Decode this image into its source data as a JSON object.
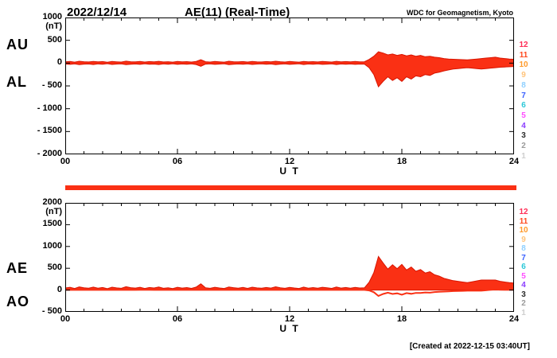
{
  "header": {
    "date": "2022/12/14",
    "title": "AE(11) (Real-Time)",
    "source": "WDC for Geomagnetism, Kyoto"
  },
  "footer": {
    "created": "[Created at 2022-12-15 03:40UT]"
  },
  "colors": {
    "background": "#ffffff",
    "frame": "#000000",
    "text": "#000000",
    "trace_fill": "#fa3014",
    "trace_stroke": "#d81400"
  },
  "station_bar": {
    "count": 11,
    "color": "#fa3014"
  },
  "station_legend": {
    "entries": [
      {
        "label": "12",
        "color": "#ff2d55"
      },
      {
        "label": "11",
        "color": "#ff4a1f"
      },
      {
        "label": "10",
        "color": "#ff9a2a"
      },
      {
        "label": "9",
        "color": "#ffc37a"
      },
      {
        "label": "8",
        "color": "#8fd0ff"
      },
      {
        "label": "7",
        "color": "#3a60ff"
      },
      {
        "label": "6",
        "color": "#2cc8d8"
      },
      {
        "label": "5",
        "color": "#ff4dff"
      },
      {
        "label": "4",
        "color": "#8a3cff"
      },
      {
        "label": "3",
        "color": "#2b2b2b"
      },
      {
        "label": "2",
        "color": "#9a9a9a"
      },
      {
        "label": "1",
        "color": "#cfcfcf"
      }
    ]
  },
  "chart_data": [
    {
      "type": "area",
      "name": "AU-AL-panel",
      "left_labels": [
        "AU",
        "AL"
      ],
      "xlabel": "U T",
      "ylabel_unit": "(nT)",
      "ylim": [
        -2000,
        1000
      ],
      "xlim": [
        0,
        24
      ],
      "fill_mode": "between",
      "x_start": 0,
      "x_step_hours": 0.25,
      "xticks": [
        {
          "h": 0,
          "label": "00"
        },
        {
          "h": 6,
          "label": "06"
        },
        {
          "h": 12,
          "label": "12"
        },
        {
          "h": 18,
          "label": "18"
        },
        {
          "h": 24,
          "label": "24"
        }
      ],
      "yticks": [
        {
          "v": 1000,
          "label": "1000"
        },
        {
          "v": 500,
          "label": "500"
        },
        {
          "v": 0,
          "label": "0"
        },
        {
          "v": -500,
          "label": "- 500"
        },
        {
          "v": -1000,
          "label": "- 1000"
        },
        {
          "v": -1500,
          "label": "- 1500"
        },
        {
          "v": -2000,
          "label": "- 2000"
        }
      ],
      "series": [
        {
          "name": "AU",
          "values": [
            28,
            35,
            22,
            40,
            30,
            25,
            38,
            27,
            33,
            20,
            36,
            29,
            24,
            42,
            31,
            26,
            37,
            23,
            34,
            28,
            39,
            25,
            30,
            22,
            35,
            27,
            32,
            24,
            38,
            75,
            30,
            24,
            36,
            28,
            22,
            40,
            31,
            26,
            34,
            23,
            37,
            29,
            25,
            33,
            27,
            41,
            30,
            24,
            35,
            28,
            22,
            38,
            26,
            32,
            25,
            36,
            30,
            23,
            39,
            27,
            33,
            26,
            35,
            28,
            30,
            80,
            150,
            250,
            220,
            180,
            200,
            170,
            190,
            160,
            180,
            150,
            170,
            140,
            150,
            130,
            120,
            100,
            90,
            85,
            80,
            75,
            70,
            80,
            90,
            100,
            110,
            120,
            130,
            110,
            100,
            90,
            85
          ]
        },
        {
          "name": "AL",
          "values": [
            -20,
            -28,
            -15,
            -32,
            -22,
            -18,
            -30,
            -16,
            -26,
            -12,
            -29,
            -21,
            -17,
            -34,
            -24,
            -19,
            -27,
            -14,
            -25,
            -20,
            -31,
            -16,
            -23,
            -13,
            -28,
            -18,
            -24,
            -15,
            -30,
            -70,
            -22,
            -16,
            -28,
            -20,
            -14,
            -32,
            -23,
            -18,
            -26,
            -15,
            -29,
            -21,
            -17,
            -25,
            -19,
            -33,
            -22,
            -16,
            -27,
            -20,
            -14,
            -30,
            -18,
            -24,
            -17,
            -28,
            -22,
            -15,
            -31,
            -19,
            -25,
            -18,
            -27,
            -20,
            -22,
            -100,
            -250,
            -520,
            -400,
            -300,
            -380,
            -320,
            -400,
            -300,
            -350,
            -280,
            -300,
            -250,
            -270,
            -220,
            -200,
            -170,
            -150,
            -130,
            -120,
            -110,
            -100,
            -110,
            -120,
            -130,
            -120,
            -110,
            -100,
            -90,
            -85,
            -80,
            -75
          ]
        }
      ]
    },
    {
      "type": "area",
      "name": "AE-AO-panel",
      "left_labels": [
        "AE",
        "AO"
      ],
      "xlabel": "U T",
      "ylabel_unit": "(nT)",
      "ylim": [
        -500,
        2000
      ],
      "xlim": [
        0,
        24
      ],
      "fill_mode": "baseline",
      "x_start": 0,
      "x_step_hours": 0.25,
      "xticks": [
        {
          "h": 0,
          "label": "00"
        },
        {
          "h": 6,
          "label": "06"
        },
        {
          "h": 12,
          "label": "12"
        },
        {
          "h": 18,
          "label": "18"
        },
        {
          "h": 24,
          "label": "24"
        }
      ],
      "yticks": [
        {
          "v": 2000,
          "label": "2000"
        },
        {
          "v": 1500,
          "label": "1500"
        },
        {
          "v": 1000,
          "label": "1000"
        },
        {
          "v": 500,
          "label": "500"
        },
        {
          "v": 0,
          "label": "0"
        },
        {
          "v": -500,
          "label": "- 500"
        }
      ],
      "series": [
        {
          "name": "AE",
          "values": [
            48,
            63,
            37,
            72,
            52,
            43,
            68,
            43,
            59,
            32,
            65,
            50,
            41,
            76,
            55,
            45,
            64,
            37,
            59,
            48,
            70,
            41,
            53,
            35,
            63,
            45,
            56,
            39,
            68,
            145,
            52,
            40,
            64,
            48,
            36,
            72,
            54,
            44,
            60,
            38,
            66,
            50,
            42,
            58,
            46,
            74,
            52,
            40,
            62,
            48,
            36,
            68,
            44,
            56,
            42,
            64,
            52,
            38,
            70,
            46,
            58,
            44,
            62,
            48,
            52,
            180,
            400,
            770,
            620,
            480,
            580,
            490,
            590,
            460,
            530,
            430,
            470,
            390,
            420,
            350,
            320,
            270,
            240,
            215,
            200,
            185,
            170,
            190,
            210,
            230,
            230,
            230,
            230,
            200,
            185,
            170,
            160
          ]
        },
        {
          "name": "AO",
          "values": [
            4,
            4,
            4,
            4,
            4,
            4,
            4,
            6,
            4,
            4,
            4,
            4,
            4,
            4,
            4,
            4,
            5,
            5,
            5,
            4,
            4,
            5,
            4,
            5,
            4,
            5,
            4,
            5,
            4,
            3,
            4,
            4,
            4,
            4,
            4,
            4,
            4,
            4,
            4,
            4,
            4,
            4,
            4,
            4,
            4,
            4,
            4,
            4,
            4,
            4,
            4,
            4,
            4,
            4,
            4,
            4,
            4,
            4,
            4,
            4,
            4,
            4,
            4,
            4,
            4,
            -10,
            -50,
            -135,
            -90,
            -60,
            -90,
            -75,
            -105,
            -70,
            -85,
            -65,
            -65,
            -55,
            -60,
            -45,
            -40,
            -35,
            -30,
            -23,
            -20,
            -18,
            -15,
            -15,
            -15,
            -15,
            -5,
            5,
            15,
            10,
            8,
            5,
            5
          ]
        }
      ]
    }
  ]
}
